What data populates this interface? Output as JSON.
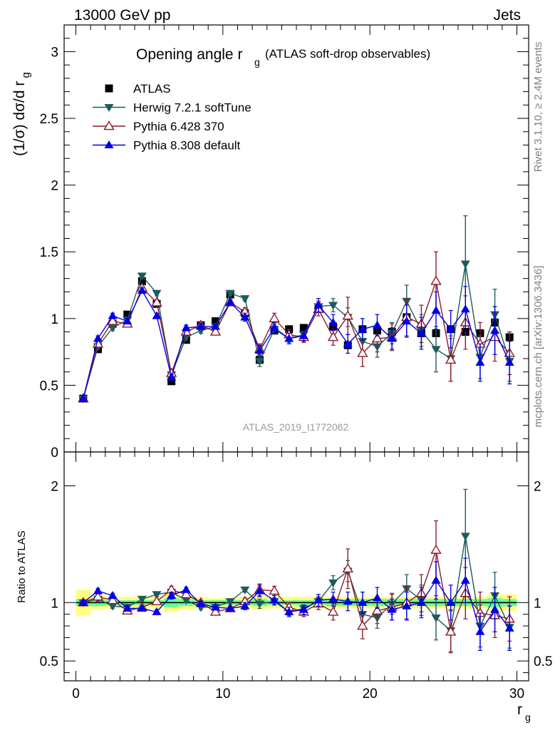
{
  "header": {
    "left": "13000 GeV pp",
    "right": "Jets"
  },
  "side_labels": {
    "rivet": "Rivet 3.1.10, ≥ 2.4M events",
    "mcplots": "mcplots.cern.ch [arXiv:1306.3436]"
  },
  "chart_data": [
    {
      "type": "line",
      "title_main": "Opening angle r",
      "title_sub": "g",
      "title_tail": "(ATLAS soft-drop observables)",
      "ylabel": "(1/σ) dσ/d r",
      "ylabel_sub": "g",
      "watermark": "ATLAS_2019_I1772062",
      "xlim": [
        -0.8,
        30.8
      ],
      "ylim": [
        0,
        3.2
      ],
      "yticks": [
        0,
        0.5,
        1,
        1.5,
        2,
        2.5,
        3
      ],
      "ytick_labels": [
        "0",
        "0.5",
        "1",
        "1.5",
        "2",
        "2.5",
        "3"
      ],
      "legend_position": "top-left",
      "x": [
        0.5,
        1.5,
        2.5,
        3.5,
        4.5,
        5.5,
        6.5,
        7.5,
        8.5,
        9.5,
        10.5,
        11.5,
        12.5,
        13.5,
        14.5,
        15.5,
        16.5,
        17.5,
        18.5,
        19.5,
        20.5,
        21.5,
        22.5,
        23.5,
        24.5,
        25.5,
        26.5,
        27.5,
        28.5,
        29.5
      ],
      "series": [
        {
          "name": "ATLAS",
          "marker": "square-filled",
          "color": "#000000",
          "values": [
            0.4,
            0.77,
            0.96,
            1.03,
            1.28,
            1.11,
            0.53,
            0.84,
            0.95,
            0.98,
            1.18,
            1.04,
            0.69,
            0.91,
            0.92,
            0.93,
            1.08,
            0.94,
            0.8,
            0.92,
            0.91,
            0.9,
            1.01,
            0.89,
            0.89,
            0.92,
            0.9,
            0.89,
            0.97,
            0.86
          ],
          "errors": [
            0.01,
            0.01,
            0.01,
            0.01,
            0.01,
            0.01,
            0.01,
            0.01,
            0.01,
            0.01,
            0.01,
            0.01,
            0.01,
            0.01,
            0.01,
            0.01,
            0.01,
            0.01,
            0.01,
            0.01,
            0.01,
            0.01,
            0.01,
            0.01,
            0.01,
            0.01,
            0.01,
            0.01,
            0.01,
            0.01
          ]
        },
        {
          "name": "Herwig 7.2.1 softTune",
          "marker": "triangle-down-filled",
          "color": "#1d5c5c",
          "values": [
            0.4,
            0.79,
            0.93,
            0.99,
            1.32,
            1.19,
            0.58,
            0.86,
            0.91,
            0.94,
            1.19,
            1.15,
            0.68,
            0.92,
            0.85,
            0.88,
            1.09,
            1.1,
            1.01,
            0.83,
            0.79,
            0.89,
            1.13,
            0.91,
            0.77,
            0.7,
            1.41,
            0.71,
            1.03,
            0.68
          ],
          "errors": [
            0.01,
            0.02,
            0.02,
            0.02,
            0.02,
            0.02,
            0.02,
            0.02,
            0.02,
            0.02,
            0.02,
            0.02,
            0.04,
            0.03,
            0.03,
            0.03,
            0.04,
            0.05,
            0.07,
            0.08,
            0.08,
            0.08,
            0.12,
            0.12,
            0.17,
            0.17,
            0.36,
            0.16,
            0.19,
            0.15
          ]
        },
        {
          "name": "Pythia 6.428 370",
          "marker": "triangle-up-open",
          "color": "#8b1a2a",
          "values": [
            0.4,
            0.81,
            0.98,
            0.96,
            1.23,
            1.12,
            0.59,
            0.9,
            0.95,
            0.9,
            1.12,
            1.05,
            0.77,
            1.0,
            0.88,
            0.86,
            1.07,
            0.86,
            1.02,
            0.74,
            0.85,
            0.86,
            1.01,
            0.96,
            1.28,
            0.69,
            0.97,
            0.81,
            0.86,
            0.74
          ],
          "errors": [
            0.01,
            0.02,
            0.02,
            0.02,
            0.02,
            0.02,
            0.02,
            0.02,
            0.02,
            0.02,
            0.02,
            0.03,
            0.04,
            0.04,
            0.04,
            0.04,
            0.05,
            0.06,
            0.14,
            0.1,
            0.1,
            0.1,
            0.14,
            0.14,
            0.22,
            0.16,
            0.2,
            0.16,
            0.18,
            0.16
          ]
        },
        {
          "name": "Pythia 8.308 default",
          "marker": "triangle-up-filled",
          "color": "#0000e6",
          "values": [
            0.4,
            0.85,
            1.02,
            0.98,
            1.21,
            1.02,
            0.56,
            0.93,
            0.94,
            0.94,
            1.12,
            1.01,
            0.76,
            0.93,
            0.85,
            0.87,
            1.1,
            0.97,
            0.81,
            0.92,
            0.95,
            0.85,
            0.98,
            0.89,
            1.06,
            0.92,
            1.07,
            0.67,
            0.91,
            0.67
          ],
          "errors": [
            0.01,
            0.02,
            0.02,
            0.02,
            0.02,
            0.02,
            0.02,
            0.02,
            0.02,
            0.02,
            0.02,
            0.03,
            0.04,
            0.04,
            0.04,
            0.04,
            0.05,
            0.06,
            0.07,
            0.08,
            0.08,
            0.08,
            0.12,
            0.12,
            0.14,
            0.14,
            0.17,
            0.14,
            0.18,
            0.16
          ]
        }
      ]
    },
    {
      "type": "line",
      "ylabel": "Ratio to ATLAS",
      "xlabel": "r",
      "xlabel_sub": "g",
      "xlim": [
        -0.8,
        30.8
      ],
      "ylim": [
        0.33,
        2.29
      ],
      "xticks": [
        0,
        10,
        20,
        30
      ],
      "xtick_labels": [
        "0",
        "10",
        "20",
        "30"
      ],
      "yticks": [
        0.5,
        1,
        2
      ],
      "ytick_labels": [
        "0.5",
        "1",
        "2"
      ],
      "band_inner_halfwidth": [
        0.03,
        0.03,
        0.02,
        0.02,
        0.02,
        0.02,
        0.04,
        0.03,
        0.02,
        0.02,
        0.02,
        0.02,
        0.03,
        0.02,
        0.02,
        0.02,
        0.02,
        0.03,
        0.03,
        0.03,
        0.03,
        0.03,
        0.03,
        0.03,
        0.03,
        0.03,
        0.03,
        0.03,
        0.04,
        0.03
      ],
      "band_outer_halfwidth": [
        0.11,
        0.06,
        0.05,
        0.05,
        0.05,
        0.05,
        0.08,
        0.06,
        0.05,
        0.04,
        0.04,
        0.05,
        0.06,
        0.05,
        0.05,
        0.05,
        0.05,
        0.05,
        0.05,
        0.05,
        0.05,
        0.05,
        0.05,
        0.05,
        0.05,
        0.05,
        0.05,
        0.05,
        0.07,
        0.07
      ],
      "band_colors": {
        "inner": "#66ff99",
        "outer": "#ffff80"
      },
      "x": [
        0.5,
        1.5,
        2.5,
        3.5,
        4.5,
        5.5,
        6.5,
        7.5,
        8.5,
        9.5,
        10.5,
        11.5,
        12.5,
        13.5,
        14.5,
        15.5,
        16.5,
        17.5,
        18.5,
        19.5,
        20.5,
        21.5,
        22.5,
        23.5,
        24.5,
        25.5,
        26.5,
        27.5,
        28.5,
        29.5
      ],
      "series": [
        {
          "name": "Herwig 7.2.1 softTune",
          "marker": "triangle-down-filled",
          "color": "#1d5c5c",
          "values": [
            1.0,
            1.03,
            0.97,
            0.96,
            1.03,
            1.07,
            1.09,
            1.02,
            0.96,
            0.96,
            1.01,
            1.11,
            0.99,
            1.01,
            0.92,
            0.95,
            1.01,
            1.17,
            1.27,
            0.9,
            0.87,
            0.99,
            1.12,
            1.02,
            0.87,
            0.76,
            1.57,
            0.8,
            1.06,
            0.79
          ],
          "errors": [
            0.01,
            0.02,
            0.02,
            0.02,
            0.02,
            0.02,
            0.03,
            0.02,
            0.02,
            0.02,
            0.02,
            0.02,
            0.04,
            0.03,
            0.03,
            0.03,
            0.04,
            0.06,
            0.09,
            0.09,
            0.09,
            0.09,
            0.12,
            0.13,
            0.19,
            0.18,
            0.4,
            0.18,
            0.2,
            0.18
          ]
        },
        {
          "name": "Pythia 6.428 370",
          "marker": "triangle-up-open",
          "color": "#8b1a2a",
          "values": [
            1.0,
            1.05,
            1.02,
            0.93,
            0.96,
            1.01,
            1.11,
            1.07,
            1.0,
            0.92,
            0.95,
            1.01,
            1.11,
            1.1,
            0.96,
            0.92,
            0.99,
            0.92,
            1.29,
            0.8,
            0.93,
            0.96,
            1.0,
            1.08,
            1.45,
            0.75,
            1.08,
            0.91,
            0.89,
            0.86
          ],
          "errors": [
            0.01,
            0.02,
            0.02,
            0.02,
            0.02,
            0.02,
            0.03,
            0.02,
            0.02,
            0.02,
            0.02,
            0.03,
            0.05,
            0.04,
            0.04,
            0.04,
            0.05,
            0.07,
            0.17,
            0.11,
            0.11,
            0.11,
            0.14,
            0.16,
            0.25,
            0.18,
            0.22,
            0.18,
            0.19,
            0.19
          ]
        },
        {
          "name": "Pythia 8.308 default",
          "marker": "triangle-up-filled",
          "color": "#0000e6",
          "values": [
            1.0,
            1.1,
            1.06,
            0.95,
            0.95,
            0.92,
            1.06,
            1.11,
            0.99,
            0.96,
            0.95,
            0.97,
            1.1,
            1.02,
            0.92,
            0.94,
            1.02,
            1.03,
            1.01,
            1.0,
            1.04,
            0.94,
            0.97,
            1.0,
            1.19,
            1.0,
            1.19,
            0.75,
            0.94,
            0.78
          ],
          "errors": [
            0.01,
            0.02,
            0.02,
            0.02,
            0.02,
            0.02,
            0.03,
            0.02,
            0.02,
            0.02,
            0.02,
            0.03,
            0.05,
            0.04,
            0.04,
            0.04,
            0.05,
            0.06,
            0.08,
            0.09,
            0.09,
            0.09,
            0.12,
            0.13,
            0.16,
            0.15,
            0.19,
            0.16,
            0.19,
            0.19
          ]
        }
      ]
    }
  ]
}
